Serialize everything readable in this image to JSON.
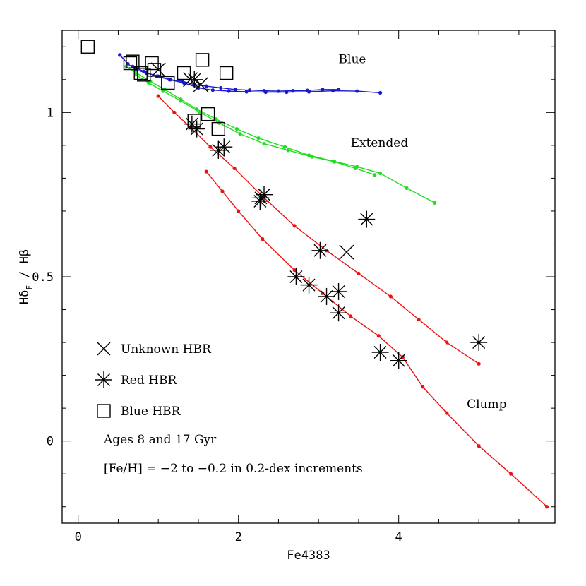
{
  "chart_data": {
    "type": "scatter",
    "xlabel": "Fe4383",
    "ylabel_parts": {
      "base": "Hδ",
      "sub": "F",
      "rest": " / Hβ"
    },
    "xlim": [
      -0.2,
      5.95
    ],
    "ylim": [
      -0.25,
      1.25
    ],
    "x_ticks": [
      0,
      2,
      4
    ],
    "y_ticks": [
      0,
      0.5,
      1
    ],
    "x_tick_labels": [
      "0",
      "2",
      "4"
    ],
    "y_tick_labels": [
      "0",
      "0.5",
      "1"
    ],
    "colors": {
      "blue": "#1a1acc",
      "green": "#22dd22",
      "red": "#ee1111",
      "frame": "#000000"
    },
    "model_lines": [
      {
        "group": "Blue",
        "color": "blue",
        "x": [
          0.52,
          0.62,
          0.72,
          0.85,
          1.0,
          1.15,
          1.3,
          1.45,
          1.6,
          1.78,
          1.96,
          2.14,
          2.32,
          2.5,
          2.68,
          2.86,
          3.05,
          3.25
        ],
        "y": [
          1.175,
          1.148,
          1.13,
          1.12,
          1.11,
          1.1,
          1.095,
          1.085,
          1.08,
          1.075,
          1.07,
          1.068,
          1.066,
          1.065,
          1.066,
          1.067,
          1.07,
          1.07
        ]
      },
      {
        "group": "Blue",
        "color": "blue",
        "x": [
          0.68,
          0.82,
          0.98,
          1.14,
          1.32,
          1.5,
          1.68,
          1.88,
          2.1,
          2.34,
          2.6,
          2.88,
          3.18,
          3.48,
          3.77
        ],
        "y": [
          1.14,
          1.125,
          1.11,
          1.1,
          1.09,
          1.075,
          1.068,
          1.065,
          1.063,
          1.062,
          1.062,
          1.063,
          1.066,
          1.065,
          1.06
        ]
      },
      {
        "group": "Extended",
        "color": "green",
        "x": [
          0.6,
          0.73,
          0.9,
          1.08,
          1.28,
          1.48,
          1.72,
          1.98,
          2.25,
          2.58,
          2.88,
          3.18,
          3.48,
          3.77,
          4.1,
          4.45
        ],
        "y": [
          1.14,
          1.12,
          1.095,
          1.07,
          1.04,
          1.01,
          0.98,
          0.95,
          0.922,
          0.895,
          0.87,
          0.852,
          0.835,
          0.815,
          0.77,
          0.725
        ]
      },
      {
        "group": "Extended",
        "color": "green",
        "x": [
          0.72,
          0.88,
          1.06,
          1.28,
          1.52,
          1.76,
          2.02,
          2.32,
          2.62,
          2.92,
          3.2,
          3.46,
          3.7
        ],
        "y": [
          1.115,
          1.09,
          1.065,
          1.035,
          1.0,
          0.968,
          0.935,
          0.905,
          0.885,
          0.865,
          0.85,
          0.83,
          0.81
        ]
      },
      {
        "group": "Clump",
        "color": "red",
        "x": [
          1.0,
          1.2,
          1.4,
          1.65,
          1.95,
          2.3,
          2.7,
          3.1,
          3.5,
          3.9,
          4.25,
          4.6,
          5.0
        ],
        "y": [
          1.05,
          1.0,
          0.955,
          0.895,
          0.83,
          0.745,
          0.655,
          0.58,
          0.51,
          0.44,
          0.37,
          0.3,
          0.235
        ]
      },
      {
        "group": "Clump",
        "color": "red",
        "x": [
          1.6,
          1.8,
          2.0,
          2.3,
          2.7,
          3.05,
          3.4,
          3.75,
          4.05,
          4.3,
          4.6,
          5.0,
          5.4,
          5.85
        ],
        "y": [
          0.82,
          0.76,
          0.7,
          0.615,
          0.52,
          0.45,
          0.38,
          0.32,
          0.255,
          0.165,
          0.085,
          -0.015,
          -0.1,
          -0.2
        ]
      }
    ],
    "points": {
      "unknown_hbr": [
        {
          "x": 1.0,
          "y": 1.13
        },
        {
          "x": 1.4,
          "y": 1.1
        },
        {
          "x": 1.53,
          "y": 1.085
        },
        {
          "x": 3.35,
          "y": 0.575
        }
      ],
      "red_hbr": [
        {
          "x": 1.45,
          "y": 1.1
        },
        {
          "x": 1.42,
          "y": 0.965
        },
        {
          "x": 1.48,
          "y": 0.95
        },
        {
          "x": 1.75,
          "y": 0.885
        },
        {
          "x": 1.82,
          "y": 0.895
        },
        {
          "x": 2.28,
          "y": 0.74
        },
        {
          "x": 2.32,
          "y": 0.75
        },
        {
          "x": 2.27,
          "y": 0.73
        },
        {
          "x": 3.6,
          "y": 0.675
        },
        {
          "x": 3.02,
          "y": 0.58
        },
        {
          "x": 2.72,
          "y": 0.5
        },
        {
          "x": 2.88,
          "y": 0.475
        },
        {
          "x": 3.1,
          "y": 0.44
        },
        {
          "x": 3.25,
          "y": 0.455
        },
        {
          "x": 3.25,
          "y": 0.39
        },
        {
          "x": 3.77,
          "y": 0.27
        },
        {
          "x": 4.0,
          "y": 0.245
        },
        {
          "x": 5.0,
          "y": 0.3
        }
      ],
      "blue_hbr": [
        {
          "x": 0.12,
          "y": 1.2
        },
        {
          "x": 0.68,
          "y": 1.155
        },
        {
          "x": 0.65,
          "y": 1.15
        },
        {
          "x": 0.92,
          "y": 1.15
        },
        {
          "x": 0.95,
          "y": 1.13
        },
        {
          "x": 0.78,
          "y": 1.12
        },
        {
          "x": 0.82,
          "y": 1.115
        },
        {
          "x": 1.32,
          "y": 1.12
        },
        {
          "x": 1.55,
          "y": 1.16
        },
        {
          "x": 1.85,
          "y": 1.12
        },
        {
          "x": 1.12,
          "y": 1.09
        },
        {
          "x": 1.45,
          "y": 0.975
        },
        {
          "x": 1.62,
          "y": 0.995
        },
        {
          "x": 1.75,
          "y": 0.95
        }
      ]
    },
    "group_labels": [
      {
        "text": "Blue",
        "x": 3.25,
        "y": 1.15
      },
      {
        "text": "Extended",
        "x": 3.4,
        "y": 0.895
      },
      {
        "text": "Clump",
        "x": 4.85,
        "y": 0.1
      }
    ],
    "legend": {
      "placement": "bottom-left",
      "entries": [
        {
          "marker": "cross",
          "label": "Unknown HBR"
        },
        {
          "marker": "asterisk",
          "label": "Red HBR"
        },
        {
          "marker": "square",
          "label": "Blue HBR"
        }
      ],
      "notes": [
        "Ages 8 and 17 Gyr",
        "[Fe/H] = −2 to −0.2 in 0.2-dex increments"
      ]
    }
  }
}
